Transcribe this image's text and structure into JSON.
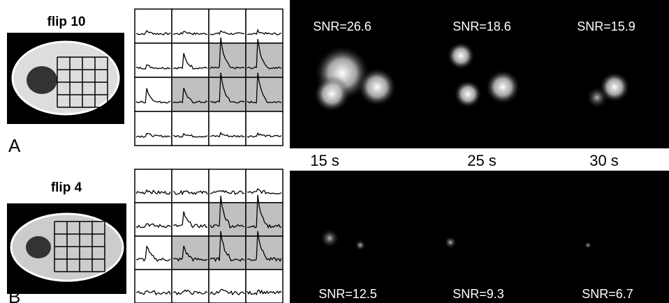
{
  "panel_a": {
    "title": "flip 10",
    "label": "A",
    "snr": [
      "SNR=26.6",
      "SNR=18.6",
      "SNR=15.9"
    ]
  },
  "times": [
    "15 s",
    "25 s",
    "30 s"
  ],
  "panel_b": {
    "title": "flip 4",
    "label": "B",
    "snr": [
      "SNR=12.5",
      "SNR=9.3",
      "SNR=6.7"
    ]
  }
}
